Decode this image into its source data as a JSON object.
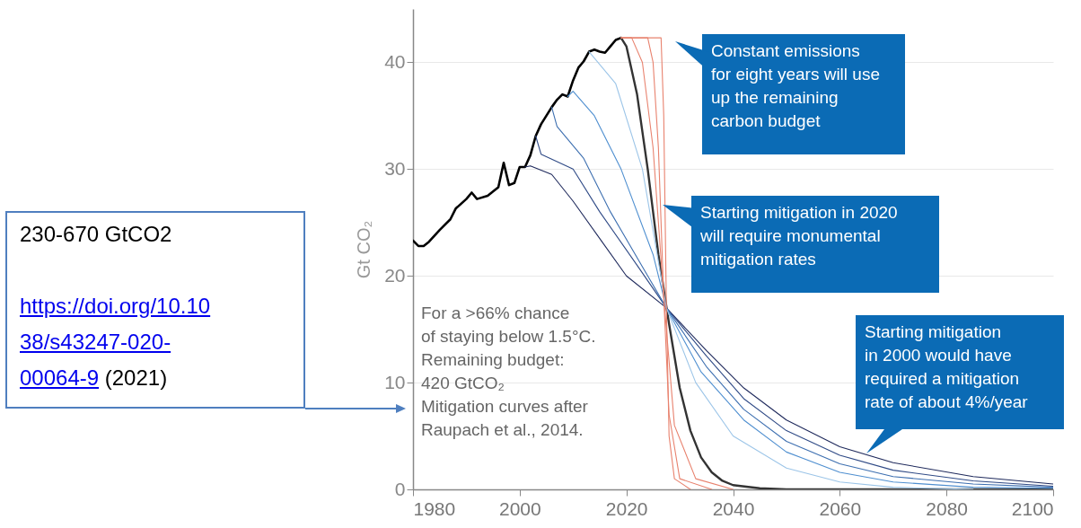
{
  "chart_data": {
    "type": "line",
    "ylabel": "Gt CO₂",
    "xlim": [
      1980,
      2100
    ],
    "xticks": [
      1980,
      2000,
      2020,
      2040,
      2060,
      2080,
      2100
    ],
    "ylim": [
      0,
      45
    ],
    "yticks": [
      0,
      10,
      20,
      30,
      40
    ],
    "grid": "y",
    "marker": "none",
    "line_style": "solid",
    "series": [
      {
        "color": "#000000",
        "x": [
          1980,
          1981,
          1982,
          1983,
          1985,
          1987,
          1988,
          1990,
          1991,
          1992,
          1994,
          1996,
          1997,
          1998,
          1999,
          2000,
          2001,
          2002,
          2003,
          2004,
          2005,
          2006,
          2007,
          2008,
          2009,
          2010,
          2011,
          2012,
          2013,
          2014,
          2015,
          2016,
          2017,
          2018,
          2019
        ],
        "values": [
          23.3,
          22.8,
          22.8,
          23.2,
          24.3,
          25.3,
          26.3,
          27.2,
          27.8,
          27.2,
          27.5,
          28.3,
          30.6,
          28.5,
          28.7,
          30.2,
          30.2,
          31.3,
          33.1,
          34.2,
          35.0,
          35.8,
          36.5,
          37.0,
          36.8,
          38.3,
          39.5,
          40.1,
          41.0,
          41.2,
          41.0,
          40.9,
          41.5,
          42.1,
          42.3
        ]
      },
      {
        "color": "#333333",
        "x": [
          2019,
          2020,
          2022,
          2024,
          2026,
          2028,
          2030,
          2032,
          2034,
          2036,
          2038,
          2040,
          2045,
          2050,
          2100
        ],
        "values": [
          42.3,
          41.5,
          37,
          30,
          22,
          15.5,
          9.5,
          5.5,
          3,
          1.6,
          0.8,
          0.4,
          0.1,
          0,
          0
        ]
      },
      {
        "color": "#1f2a5c",
        "x": [
          2001,
          2002,
          2006,
          2010,
          2015,
          2020,
          2027.5,
          2035,
          2042,
          2050,
          2060,
          2070,
          2085,
          2100
        ],
        "values": [
          30.2,
          30.3,
          29.5,
          27,
          23.5,
          20,
          17,
          13,
          9.5,
          6.5,
          4,
          2.5,
          1.2,
          0.5
        ]
      },
      {
        "color": "#2f4a86",
        "x": [
          2003,
          2004,
          2010,
          2015,
          2022,
          2027.5,
          2035,
          2042,
          2050,
          2060,
          2070,
          2085,
          2100
        ],
        "values": [
          33.1,
          31.4,
          30,
          26,
          21,
          17,
          12.5,
          8.5,
          5.5,
          3.2,
          1.8,
          0.8,
          0.3
        ]
      },
      {
        "color": "#3d6fb0",
        "x": [
          2006,
          2007,
          2012,
          2017,
          2024,
          2027.5,
          2035,
          2042,
          2050,
          2060,
          2070,
          2085,
          2100
        ],
        "values": [
          35.8,
          34,
          31,
          26,
          20,
          17,
          11.5,
          7.5,
          4.5,
          2.4,
          1.2,
          0.5,
          0.2
        ]
      },
      {
        "color": "#4f8fd0",
        "x": [
          2009,
          2010,
          2014,
          2019,
          2025,
          2027.5,
          2034,
          2042,
          2050,
          2060,
          2070,
          2085,
          2100
        ],
        "values": [
          36.8,
          37.3,
          35,
          30,
          22,
          17,
          11,
          6.5,
          3.5,
          1.6,
          0.7,
          0.2,
          0.1
        ]
      },
      {
        "color": "#9cc5e8",
        "x": [
          2013,
          2018,
          2023,
          2027.5,
          2033,
          2040,
          2050,
          2060,
          2070,
          2085
        ],
        "values": [
          41,
          38,
          30,
          17,
          10,
          5,
          2,
          0.7,
          0.2,
          0
        ]
      },
      {
        "color": "#e8826e",
        "x": [
          2019,
          2021,
          2023,
          2025,
          2027,
          2029,
          2033,
          2040
        ],
        "values": [
          42.3,
          42.3,
          40,
          32,
          18,
          6,
          1,
          0
        ]
      },
      {
        "color": "#e8826e",
        "x": [
          2019,
          2024,
          2025,
          2026,
          2027,
          2028,
          2030,
          2036
        ],
        "values": [
          42.3,
          42.3,
          40,
          32,
          18,
          7,
          1,
          0
        ]
      },
      {
        "color": "#e8826e",
        "x": [
          2019,
          2026.5,
          2027,
          2027.5,
          2028,
          2029,
          2032
        ],
        "values": [
          42.3,
          42.3,
          35,
          17,
          5,
          1,
          0
        ]
      }
    ],
    "annotations": [
      "Constant emissions\nfor eight years will use\nup the remaining\ncarbon budget",
      "Starting mitigation in 2020\nwill require monumental\nmitigation rates",
      "Starting mitigation\nin 2000 would have\nrequired a mitigation\nrate of about 4%/year",
      "For a >66% chance\nof staying below 1.5°C.\nRemaining budget:\n420 GtCO₂\nMitigation curves after\nRaupach et al., 2014.",
      "230-670 GtCO2",
      "https://doi.org/10.1038/s43247-020-00064-9",
      "(2021)"
    ]
  }
}
